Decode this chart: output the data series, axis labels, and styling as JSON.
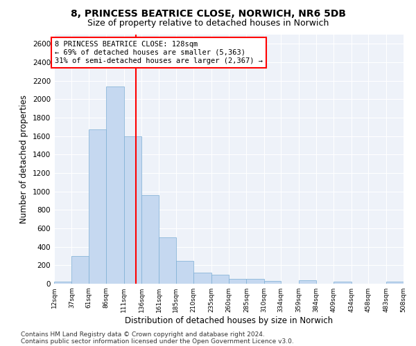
{
  "title1": "8, PRINCESS BEATRICE CLOSE, NORWICH, NR6 5DB",
  "title2": "Size of property relative to detached houses in Norwich",
  "xlabel": "Distribution of detached houses by size in Norwich",
  "ylabel": "Number of detached properties",
  "annotation_line1": "8 PRINCESS BEATRICE CLOSE: 128sqm",
  "annotation_line2": "← 69% of detached houses are smaller (5,363)",
  "annotation_line3": "31% of semi-detached houses are larger (2,367) →",
  "property_size": 128,
  "footer1": "Contains HM Land Registry data © Crown copyright and database right 2024.",
  "footer2": "Contains public sector information licensed under the Open Government Licence v3.0.",
  "bin_edges": [
    12,
    37,
    61,
    86,
    111,
    136,
    161,
    185,
    210,
    235,
    260,
    285,
    310,
    334,
    359,
    384,
    409,
    434,
    458,
    483,
    508
  ],
  "bar_heights": [
    25,
    300,
    1670,
    2140,
    1600,
    960,
    505,
    250,
    120,
    100,
    50,
    50,
    30,
    0,
    35,
    0,
    25,
    0,
    0,
    25
  ],
  "bar_color": "#c5d8f0",
  "bar_edge_color": "#7aadd4",
  "vline_color": "red",
  "vline_x": 128,
  "ylim": [
    0,
    2700
  ],
  "yticks": [
    0,
    200,
    400,
    600,
    800,
    1000,
    1200,
    1400,
    1600,
    1800,
    2000,
    2200,
    2400,
    2600
  ],
  "bg_color": "#eef2f9",
  "grid_color": "white",
  "title1_fontsize": 10,
  "title2_fontsize": 9,
  "xlabel_fontsize": 8.5,
  "ylabel_fontsize": 8.5,
  "annotation_fontsize": 7.5,
  "footer_fontsize": 6.5
}
